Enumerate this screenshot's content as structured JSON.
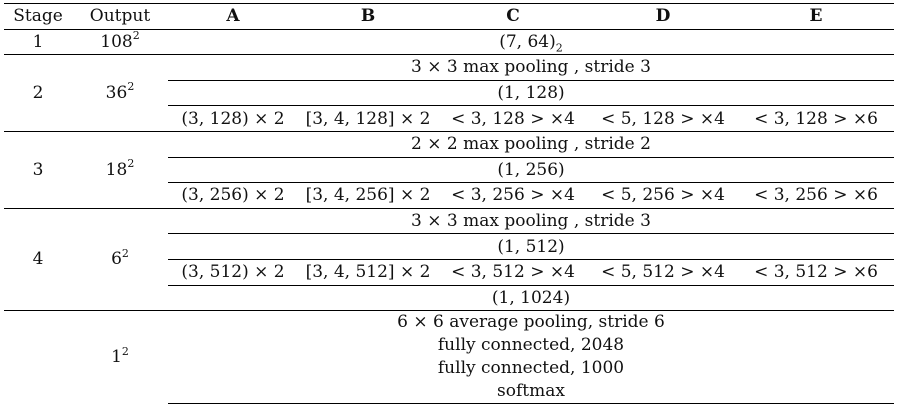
{
  "table": {
    "headers": [
      "Stage",
      "Output",
      "A",
      "B",
      "C",
      "D",
      "E"
    ],
    "stage1": {
      "stage": "1",
      "output": "108",
      "output_exp": "2",
      "conv": "(7, 64)",
      "conv_sub": "2"
    },
    "stage2": {
      "stage": "2",
      "output": "36",
      "output_exp": "2",
      "pool": "3 × 3 max pooling , stride 3",
      "conv1x1": "(1, 128)",
      "cells": [
        "(3, 128) × 2",
        "[3, 4, 128] × 2",
        "< 3, 128 > ×4",
        "< 5, 128 > ×4",
        "< 3, 128 > ×6"
      ]
    },
    "stage3": {
      "stage": "3",
      "output": "18",
      "output_exp": "2",
      "pool": "2 × 2 max pooling , stride 2",
      "conv1x1": "(1, 256)",
      "cells": [
        "(3, 256) × 2",
        "[3, 4, 256] × 2",
        "< 3, 256 > ×4",
        "< 5, 256 > ×4",
        "< 3, 256 > ×6"
      ]
    },
    "stage4": {
      "stage": "4",
      "output": "6",
      "output_exp": "2",
      "pool": "3 × 3 max pooling , stride 3",
      "conv1x1": "(1, 512)",
      "cells": [
        "(3, 512) × 2",
        "[3, 4, 512] × 2",
        "< 3, 512 > ×4",
        "< 5, 512 > ×4",
        "< 3, 512 > ×6"
      ],
      "conv_final": "(1, 1024)"
    },
    "final": {
      "output": "1",
      "output_exp": "2",
      "lines": [
        "6 × 6 average pooling, stride 6",
        "fully connected, 2048",
        "fully connected, 1000",
        "softmax"
      ]
    }
  }
}
